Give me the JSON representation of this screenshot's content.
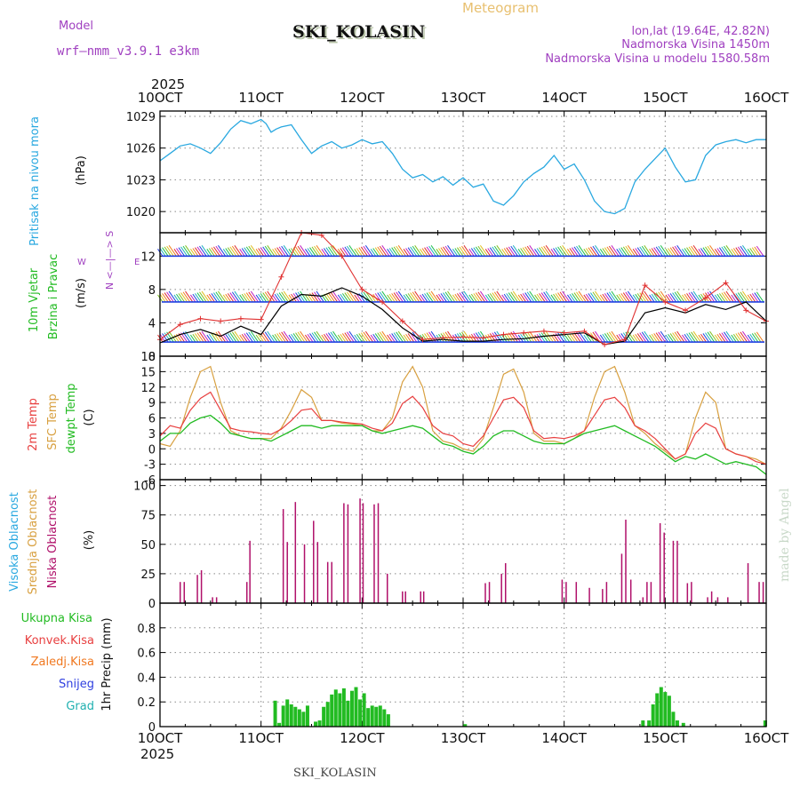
{
  "header": {
    "model_label": "Model",
    "model_name": "wrf–nmm_v3.9.1  e3km",
    "product": "Meteogram",
    "station": "SKI_KOLASIN",
    "lonlat": "lon,lat (19.64E, 42.82N)",
    "elevation": "Nadmorska Visina 1450m",
    "model_elevation": "Nadmorska Visina u modelu 1580.58m",
    "year_top": "2025",
    "year_bottom": "2025",
    "footer_station": "SKI_KOLASIN",
    "watermark": "made by Angel"
  },
  "colors": {
    "pressure": "#29a8e0",
    "wind_speed": "#000000",
    "gust": "#e03030",
    "temp2m": "#e84040",
    "sfc": "#d8a040",
    "dewpt": "#22bb22",
    "cloud": "#b0106a",
    "precip": "#22bb22",
    "legend_purple": "#a040c0",
    "legend_green": "#22bb22",
    "legend_red": "#e84040",
    "legend_orange": "#f07820",
    "legend_blue": "#3040e0",
    "legend_teal": "#20b0b0",
    "legend_cyan": "#29a8e0"
  },
  "chart_data": [
    {
      "type": "line",
      "title": "Pritisak na nivou mora",
      "ylabel": "(hPa)",
      "x_ticks": [
        "10OCT",
        "11OCT",
        "12OCT",
        "13OCT",
        "14OCT",
        "15OCT",
        "16OCT"
      ],
      "x_range": [
        0,
        6
      ],
      "ylim": [
        1018,
        1029.5
      ],
      "y_ticks": [
        1020,
        1023,
        1026,
        1029
      ],
      "series": [
        {
          "name": "Pritisak",
          "color_key": "pressure",
          "x": [
            0,
            0.1,
            0.2,
            0.3,
            0.4,
            0.5,
            0.6,
            0.7,
            0.8,
            0.9,
            1.0,
            1.05,
            1.1,
            1.15,
            1.2,
            1.3,
            1.4,
            1.5,
            1.6,
            1.7,
            1.8,
            1.9,
            2.0,
            2.1,
            2.2,
            2.3,
            2.4,
            2.5,
            2.6,
            2.7,
            2.8,
            2.9,
            3.0,
            3.1,
            3.2,
            3.3,
            3.4,
            3.5,
            3.6,
            3.7,
            3.8,
            3.9,
            4.0,
            4.1,
            4.2,
            4.3,
            4.4,
            4.5,
            4.6,
            4.7,
            4.8,
            4.9,
            5.0,
            5.1,
            5.2,
            5.3,
            5.4,
            5.5,
            5.6,
            5.7,
            5.8,
            5.9,
            6.0
          ],
          "values": [
            1024.8,
            1025.5,
            1026.2,
            1026.4,
            1026.0,
            1025.5,
            1026.5,
            1027.8,
            1028.6,
            1028.3,
            1028.7,
            1028.3,
            1027.5,
            1027.8,
            1028.0,
            1028.2,
            1026.8,
            1025.5,
            1026.2,
            1026.6,
            1026.0,
            1026.3,
            1026.8,
            1026.4,
            1026.6,
            1025.5,
            1024.0,
            1023.2,
            1023.5,
            1022.8,
            1023.3,
            1022.5,
            1023.2,
            1022.3,
            1022.6,
            1021.0,
            1020.6,
            1021.5,
            1022.8,
            1023.6,
            1024.2,
            1025.3,
            1024.0,
            1024.5,
            1023.0,
            1021.0,
            1020.0,
            1019.8,
            1020.3,
            1022.8,
            1024.0,
            1025.0,
            1026.0,
            1024.2,
            1022.8,
            1023.0,
            1025.3,
            1026.3,
            1026.6,
            1026.8,
            1026.5,
            1026.8,
            1026.8
          ]
        }
      ]
    },
    {
      "type": "line",
      "title": "10m Vjetar Brzina i Pravac",
      "ylabel": "(m/s)",
      "direction_legend": "N <—|—> S",
      "direction_w": "W",
      "direction_e": "E",
      "x_range": [
        0,
        6
      ],
      "ylim": [
        0,
        14.8
      ],
      "y_ticks": [
        0,
        4,
        8,
        12
      ],
      "direction_bands": [
        12,
        6.5,
        1.7
      ],
      "series": [
        {
          "name": "Brzina",
          "color_key": "wind_speed",
          "x": [
            0,
            0.2,
            0.4,
            0.6,
            0.8,
            1.0,
            1.2,
            1.4,
            1.6,
            1.8,
            2.0,
            2.2,
            2.4,
            2.6,
            2.8,
            3.0,
            3.2,
            3.4,
            3.6,
            3.8,
            4.0,
            4.2,
            4.4,
            4.6,
            4.8,
            5.0,
            5.2,
            5.4,
            5.6,
            5.8,
            6.0
          ],
          "values": [
            1.6,
            2.6,
            3.2,
            2.4,
            3.6,
            2.6,
            6.0,
            7.4,
            7.2,
            8.2,
            7.2,
            5.6,
            3.4,
            1.8,
            2.0,
            1.8,
            1.8,
            2.0,
            2.1,
            2.4,
            2.6,
            2.8,
            1.4,
            1.8,
            5.2,
            5.8,
            5.2,
            6.2,
            5.6,
            6.5,
            4.2
          ]
        },
        {
          "name": "Udar",
          "color_key": "gust",
          "x": [
            0,
            0.2,
            0.4,
            0.6,
            0.8,
            1.0,
            1.2,
            1.4,
            1.6,
            1.8,
            2.0,
            2.2,
            2.4,
            2.6,
            2.8,
            3.0,
            3.2,
            3.4,
            3.6,
            3.8,
            4.0,
            4.2,
            4.4,
            4.6,
            4.8,
            5.0,
            5.2,
            5.4,
            5.6,
            5.8,
            6.0
          ],
          "values": [
            2.0,
            3.8,
            4.5,
            4.2,
            4.5,
            4.4,
            9.5,
            14.8,
            14.5,
            12.0,
            8.0,
            6.5,
            4.2,
            2.0,
            2.2,
            2.3,
            2.2,
            2.6,
            2.8,
            3.0,
            2.8,
            3.0,
            1.4,
            2.0,
            8.5,
            6.5,
            5.5,
            7.0,
            8.8,
            5.5,
            4.2
          ]
        }
      ]
    },
    {
      "type": "line",
      "title": "2m Temp / SFC Temp / dewpt Temp",
      "label_2m": "2m Temp",
      "label_sfc": "SFC Temp",
      "label_dew": "dewpt Temp",
      "ylabel": "(C)",
      "x_range": [
        0,
        6
      ],
      "ylim": [
        -6,
        18
      ],
      "y_ticks": [
        -6,
        -3,
        0,
        3,
        6,
        9,
        12,
        15,
        18
      ],
      "series": [
        {
          "name": "2m Temp",
          "color_key": "temp2m",
          "x": [
            0,
            0.1,
            0.2,
            0.3,
            0.4,
            0.5,
            0.6,
            0.7,
            0.8,
            0.9,
            1.0,
            1.1,
            1.2,
            1.3,
            1.4,
            1.5,
            1.6,
            1.7,
            1.8,
            1.9,
            2.0,
            2.1,
            2.2,
            2.3,
            2.4,
            2.5,
            2.6,
            2.7,
            2.8,
            2.9,
            3.0,
            3.1,
            3.2,
            3.3,
            3.4,
            3.5,
            3.6,
            3.7,
            3.8,
            3.9,
            4.0,
            4.1,
            4.2,
            4.3,
            4.4,
            4.5,
            4.6,
            4.7,
            4.8,
            4.9,
            5.0,
            5.1,
            5.2,
            5.3,
            5.4,
            5.5,
            5.6,
            5.7,
            5.8,
            5.9,
            6.0
          ],
          "values": [
            2.5,
            4.5,
            4.0,
            7.5,
            9.8,
            11.0,
            7.5,
            4.0,
            3.5,
            3.3,
            3.0,
            2.8,
            3.8,
            5.5,
            7.5,
            7.8,
            5.5,
            5.5,
            5.2,
            5.0,
            4.8,
            4.0,
            3.5,
            5.0,
            8.8,
            10.2,
            8.0,
            4.5,
            3.0,
            2.5,
            1.0,
            0.5,
            2.5,
            6.0,
            9.5,
            10.0,
            8.0,
            3.5,
            2.0,
            2.2,
            2.0,
            2.5,
            3.5,
            6.5,
            9.5,
            10.0,
            8.0,
            4.5,
            3.5,
            2.0,
            0.0,
            -2.0,
            -1.0,
            3.0,
            5.0,
            4.0,
            0.0,
            -1.0,
            -1.5,
            -2.5,
            -3.0
          ]
        },
        {
          "name": "SFC Temp",
          "color_key": "sfc",
          "x": [
            0,
            0.1,
            0.2,
            0.3,
            0.4,
            0.5,
            0.6,
            0.7,
            0.8,
            0.9,
            1.0,
            1.1,
            1.2,
            1.3,
            1.4,
            1.5,
            1.6,
            1.7,
            1.8,
            1.9,
            2.0,
            2.1,
            2.2,
            2.3,
            2.4,
            2.5,
            2.6,
            2.7,
            2.8,
            2.9,
            3.0,
            3.1,
            3.2,
            3.3,
            3.4,
            3.5,
            3.6,
            3.7,
            3.8,
            3.9,
            4.0,
            4.1,
            4.2,
            4.3,
            4.4,
            4.5,
            4.6,
            4.7,
            4.8,
            4.9,
            5.0,
            5.1,
            5.2,
            5.3,
            5.4,
            5.5,
            5.6,
            5.7,
            5.8,
            5.9,
            6.0
          ],
          "values": [
            1.0,
            0.5,
            3.5,
            10.0,
            15.0,
            16.0,
            9.0,
            3.5,
            2.5,
            2.0,
            2.0,
            2.0,
            4.0,
            7.5,
            11.5,
            10.0,
            5.5,
            5.5,
            5.0,
            4.8,
            4.5,
            3.5,
            3.5,
            6.0,
            13.0,
            16.0,
            12.0,
            3.5,
            1.5,
            1.0,
            0.0,
            -0.5,
            2.0,
            8.0,
            14.5,
            15.5,
            11.0,
            3.0,
            1.5,
            1.5,
            1.0,
            2.0,
            3.5,
            10.0,
            15.0,
            16.0,
            11.0,
            4.5,
            3.0,
            1.0,
            -0.5,
            -2.0,
            -1.0,
            6.0,
            11.0,
            9.0,
            0.0,
            -1.0,
            -1.5,
            -2.0,
            -3.0
          ]
        },
        {
          "name": "dewpt Temp",
          "color_key": "dewpt",
          "x": [
            0,
            0.1,
            0.2,
            0.3,
            0.4,
            0.5,
            0.6,
            0.7,
            0.8,
            0.9,
            1.0,
            1.1,
            1.2,
            1.3,
            1.4,
            1.5,
            1.6,
            1.7,
            1.8,
            1.9,
            2.0,
            2.1,
            2.2,
            2.3,
            2.4,
            2.5,
            2.6,
            2.7,
            2.8,
            2.9,
            3.0,
            3.1,
            3.2,
            3.3,
            3.4,
            3.5,
            3.6,
            3.7,
            3.8,
            3.9,
            4.0,
            4.1,
            4.2,
            4.3,
            4.4,
            4.5,
            4.6,
            4.7,
            4.8,
            4.9,
            5.0,
            5.1,
            5.2,
            5.3,
            5.4,
            5.5,
            5.6,
            5.7,
            5.8,
            5.9,
            6.0
          ],
          "values": [
            1.5,
            3.0,
            3.0,
            5.0,
            6.0,
            6.5,
            5.0,
            3.0,
            2.5,
            2.0,
            2.0,
            1.5,
            2.5,
            3.5,
            4.5,
            4.5,
            4.0,
            4.5,
            4.5,
            4.5,
            4.5,
            3.5,
            3.0,
            3.5,
            4.0,
            4.5,
            4.0,
            2.5,
            1.0,
            0.5,
            -0.5,
            -1.0,
            0.5,
            2.5,
            3.5,
            3.5,
            2.5,
            1.5,
            1.0,
            1.0,
            1.0,
            2.0,
            3.0,
            3.5,
            4.0,
            4.5,
            3.5,
            2.5,
            1.5,
            0.5,
            -1.0,
            -2.5,
            -1.5,
            -2.0,
            -1.0,
            -2.0,
            -3.0,
            -2.5,
            -3.0,
            -3.5,
            -5.0
          ]
        }
      ]
    },
    {
      "type": "bar",
      "title": "Visoka Oblacnost / Srednja Oblacnost / Niska Oblacnost",
      "label_high": "Visoka Oblacnost",
      "label_mid": "Srednja Oblacnost",
      "label_low": "Niska Oblacnost",
      "ylabel": "(%)",
      "x_range": [
        0,
        6
      ],
      "ylim": [
        0,
        105
      ],
      "y_ticks": [
        0,
        25,
        50,
        75,
        100
      ],
      "series": [
        {
          "name": "Niska Oblacnost",
          "color_key": "cloud",
          "x": [
            0.2,
            0.24,
            0.37,
            0.41,
            0.52,
            0.56,
            0.86,
            0.89,
            1.22,
            1.26,
            1.34,
            1.43,
            1.52,
            1.56,
            1.66,
            1.7,
            1.82,
            1.86,
            1.98,
            2.01,
            2.12,
            2.16,
            2.25,
            2.4,
            2.43,
            2.58,
            2.61,
            3.22,
            3.26,
            3.38,
            3.42,
            3.98,
            4.02,
            4.12,
            4.25,
            4.38,
            4.42,
            4.57,
            4.61,
            4.66,
            4.78,
            4.82,
            4.86,
            4.95,
            4.99,
            5.08,
            5.12,
            5.22,
            5.26,
            5.42,
            5.46,
            5.52,
            5.62,
            5.82,
            5.93,
            5.97
          ],
          "values": [
            18,
            18,
            24,
            28,
            5,
            5,
            18,
            53,
            80,
            52,
            86,
            50,
            70,
            52,
            35,
            35,
            85,
            84,
            89,
            85,
            84,
            85,
            25,
            10,
            10,
            10,
            10,
            17,
            18,
            25,
            34,
            20,
            18,
            18,
            13,
            12,
            18,
            42,
            71,
            20,
            5,
            18,
            18,
            68,
            60,
            53,
            53,
            17,
            18,
            5,
            10,
            5,
            5,
            34,
            18,
            18
          ]
        }
      ]
    },
    {
      "type": "bar",
      "title": "1hr Precip",
      "ylabel": "1hr Precip (mm)",
      "legend": [
        "Ukupna Kisa",
        "Konvek.Kisa",
        "Zaledj.Kisa",
        "Snijeg",
        "Grad"
      ],
      "x_ticks": [
        "10OCT",
        "11OCT",
        "12OCT",
        "13OCT",
        "14OCT",
        "15OCT",
        "16OCT"
      ],
      "x_range": [
        0,
        6
      ],
      "ylim": [
        0,
        1.0
      ],
      "y_ticks": [
        0,
        0.2,
        0.4,
        0.6,
        0.8
      ],
      "y_tick_labels": [
        "0",
        "0.2",
        "0.4",
        "0.6",
        "0.8"
      ],
      "series": [
        {
          "name": "Ukupna Kisa",
          "color_key": "precip",
          "x": [
            1.14,
            1.18,
            1.22,
            1.26,
            1.3,
            1.34,
            1.38,
            1.42,
            1.46,
            1.54,
            1.58,
            1.62,
            1.66,
            1.7,
            1.74,
            1.78,
            1.82,
            1.86,
            1.9,
            1.94,
            1.98,
            2.02,
            2.06,
            2.1,
            2.14,
            2.18,
            2.22,
            2.26,
            3.02,
            4.78,
            4.84,
            4.88,
            4.92,
            4.96,
            5.0,
            5.04,
            5.08,
            5.12,
            5.18,
            5.99
          ],
          "values": [
            0.21,
            0.03,
            0.17,
            0.22,
            0.18,
            0.16,
            0.14,
            0.12,
            0.17,
            0.04,
            0.05,
            0.16,
            0.2,
            0.26,
            0.3,
            0.27,
            0.31,
            0.21,
            0.29,
            0.32,
            0.22,
            0.27,
            0.15,
            0.17,
            0.16,
            0.17,
            0.14,
            0.1,
            0.02,
            0.05,
            0.05,
            0.18,
            0.27,
            0.32,
            0.28,
            0.25,
            0.12,
            0.05,
            0.03,
            0.05
          ]
        }
      ]
    }
  ]
}
